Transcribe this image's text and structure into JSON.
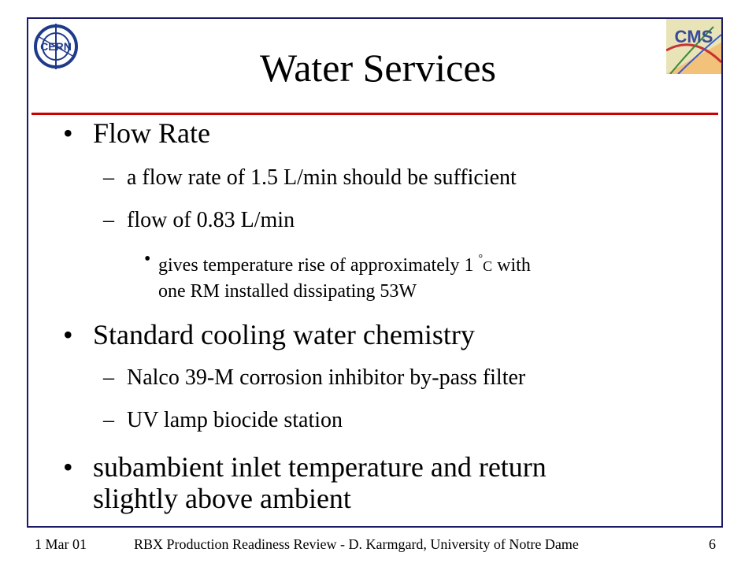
{
  "slide": {
    "title": "Water Services",
    "bullets": [
      {
        "text": "Flow Rate",
        "sub": [
          {
            "text": "a flow rate of 1.5 L/min should be sufficient"
          },
          {
            "text": "flow of 0.83 L/min"
          }
        ],
        "subsub": {
          "pre": "gives temperature rise of approximately 1",
          "degree": "°",
          "unit": "C",
          "post": "with",
          "line2": "one RM installed dissipating 53W"
        }
      },
      {
        "text": "Standard cooling water chemistry",
        "sub": [
          {
            "text": "Nalco 39-M corrosion inhibitor by-pass filter"
          },
          {
            "text": "UV lamp biocide station"
          }
        ]
      },
      {
        "text_line1": "subambient inlet temperature and return",
        "text_line2": "slightly above ambient"
      }
    ],
    "bullet_char": "•",
    "dash_char": "–"
  },
  "footer": {
    "date": "1 Mar 01",
    "center": "RBX Production Readiness Review -  D. Karmgard, University of Notre Dame",
    "page": "6"
  },
  "logos": {
    "left": "CERN",
    "right": "CMS"
  },
  "colors": {
    "frame": "#1a1a66",
    "rule": "#cc0000",
    "cern_blue": "#1f3a8a"
  }
}
